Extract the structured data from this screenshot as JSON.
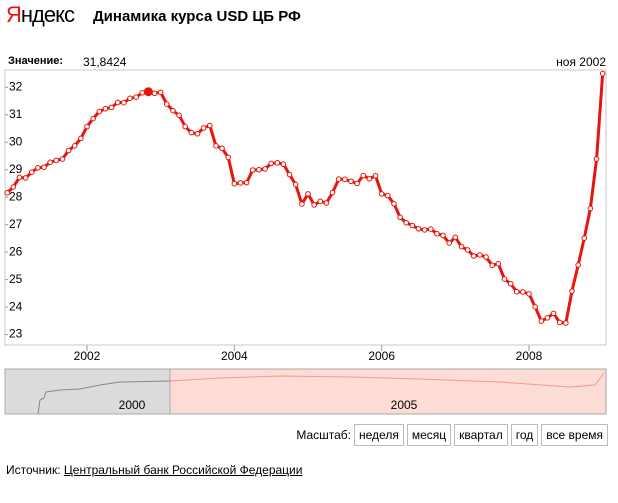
{
  "header": {
    "logo": "Яндекс",
    "title": "Динамика курса USD ЦБ РФ"
  },
  "readout": {
    "label": "Значение:",
    "value": "31,8424",
    "date": "ноя 2002"
  },
  "chart_data": {
    "type": "line",
    "color": "#e8150b",
    "highlight": 23,
    "x": [
      2000.917,
      2001,
      2001.083,
      2001.167,
      2001.25,
      2001.333,
      2001.417,
      2001.5,
      2001.583,
      2001.667,
      2001.75,
      2001.833,
      2001.917,
      2002,
      2002.083,
      2002.167,
      2002.25,
      2002.333,
      2002.417,
      2002.5,
      2002.583,
      2002.667,
      2002.75,
      2002.833,
      2002.917,
      2003,
      2003.083,
      2003.167,
      2003.25,
      2003.333,
      2003.417,
      2003.5,
      2003.583,
      2003.667,
      2003.75,
      2003.833,
      2003.917,
      2004,
      2004.083,
      2004.167,
      2004.25,
      2004.333,
      2004.417,
      2004.5,
      2004.583,
      2004.667,
      2004.75,
      2004.833,
      2004.917,
      2005,
      2005.083,
      2005.167,
      2005.25,
      2005.333,
      2005.417,
      2005.5,
      2005.583,
      2005.667,
      2005.75,
      2005.833,
      2005.917,
      2006,
      2006.083,
      2006.167,
      2006.25,
      2006.333,
      2006.417,
      2006.5,
      2006.583,
      2006.667,
      2006.75,
      2006.833,
      2006.917,
      2007,
      2007.083,
      2007.167,
      2007.25,
      2007.333,
      2007.417,
      2007.5,
      2007.583,
      2007.667,
      2007.75,
      2007.833,
      2007.917,
      2008,
      2008.083,
      2008.167,
      2008.25,
      2008.333,
      2008.417,
      2008.5,
      2008.583,
      2008.667,
      2008.75,
      2008.833,
      2008.917,
      2009
    ],
    "values": [
      28.16,
      28.37,
      28.72,
      28.7,
      28.91,
      29.07,
      29.09,
      29.27,
      29.34,
      29.39,
      29.7,
      29.87,
      30.14,
      30.57,
      30.86,
      31.12,
      31.22,
      31.27,
      31.45,
      31.44,
      31.6,
      31.64,
      31.8,
      31.84,
      31.78,
      31.82,
      31.39,
      31.15,
      30.98,
      30.57,
      30.35,
      30.31,
      30.52,
      30.61,
      29.87,
      29.78,
      29.45,
      28.49,
      28.52,
      28.53,
      28.99,
      29.0,
      29.03,
      29.23,
      29.25,
      29.2,
      28.82,
      28.46,
      27.75,
      28.12,
      27.72,
      27.85,
      27.79,
      28.17,
      28.66,
      28.65,
      28.58,
      28.5,
      28.79,
      28.67,
      28.78,
      28.12,
      28.06,
      27.76,
      27.27,
      27.07,
      26.97,
      26.85,
      26.81,
      26.84,
      26.67,
      26.61,
      26.33,
      26.54,
      26.2,
      26.08,
      25.86,
      25.9,
      25.82,
      25.52,
      25.58,
      25.02,
      24.85,
      24.56,
      24.55,
      24.48,
      24.01,
      23.49,
      23.61,
      23.77,
      23.44,
      23.42,
      24.58,
      25.53,
      26.51,
      27.59,
      29.39,
      32.5
    ],
    "xlim": [
      2000.887,
      2009.045
    ],
    "xticks": [
      2002,
      2004,
      2006,
      2008
    ],
    "ylim": [
      22.62,
      32.63
    ],
    "yticks": [
      23,
      24,
      25,
      26,
      27,
      28,
      29,
      30,
      31,
      32
    ],
    "grid": false
  },
  "navigator": {
    "labels": [
      "2000",
      "2005"
    ]
  },
  "scale": {
    "label": "Масштаб:",
    "buttons": [
      "неделя",
      "месяц",
      "квартал",
      "год",
      "все время"
    ]
  },
  "source": {
    "label": "Источник:",
    "link": "Центральный банк Российской Федерации"
  }
}
